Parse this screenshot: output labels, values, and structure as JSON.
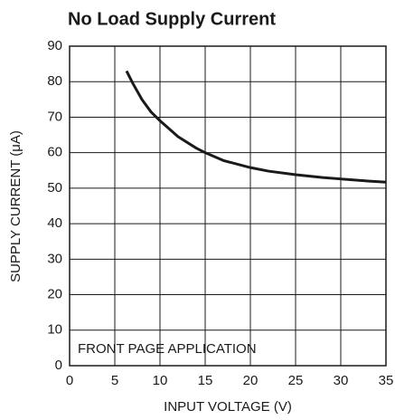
{
  "chart_data": {
    "type": "line",
    "title": "No Load Supply Current",
    "x_label": "INPUT VOLTAGE (V)",
    "y_label": "SUPPLY CURRENT (μA)",
    "annotation": "FRONT PAGE APPLICATION",
    "x": [
      6.3,
      7,
      8,
      9,
      10,
      12,
      14,
      15,
      17,
      20,
      22,
      25,
      28,
      30,
      33,
      35
    ],
    "series": [
      {
        "name": "Supply current",
        "color": "#1a1a1a",
        "values": [
          83,
          79.5,
          75,
          71.5,
          69,
          64.5,
          61.3,
          60,
          57.8,
          55.8,
          54.8,
          53.8,
          53,
          52.6,
          52,
          51.7
        ]
      }
    ],
    "xlim": [
      0,
      35
    ],
    "xticks": [
      0,
      5,
      10,
      15,
      20,
      25,
      30,
      35
    ],
    "ylim": [
      0,
      90
    ],
    "yticks": [
      0,
      10,
      20,
      30,
      40,
      50,
      60,
      70,
      80,
      90
    ],
    "grid": true
  }
}
